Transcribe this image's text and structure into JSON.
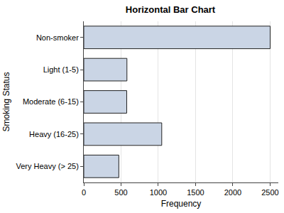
{
  "chart_data": {
    "type": "bar",
    "orientation": "horizontal",
    "title": "Horizontal Bar Chart",
    "x_label": "Frequency",
    "y_label": "Smoking Status",
    "categories": [
      "Non-smoker",
      "Light (1-5)",
      "Moderate (6-15)",
      "Heavy (16-25)",
      "Very Heavy (> 25)"
    ],
    "values": [
      2501,
      579,
      576,
      1046,
      470
    ],
    "color": "#cad5e5",
    "xlim": [
      0,
      2610
    ],
    "xticks": [
      0,
      500,
      1000,
      1500,
      2000,
      2500
    ],
    "grid": true
  }
}
